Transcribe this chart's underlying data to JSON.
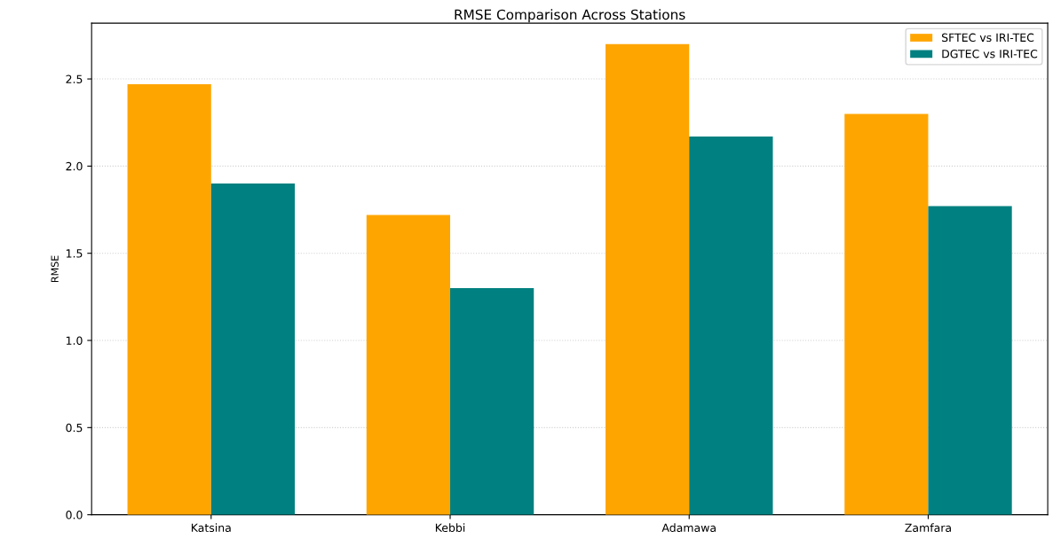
{
  "chart_data": {
    "type": "bar",
    "title": "RMSE Comparison Across Stations",
    "ylabel": "RMSE",
    "categories": [
      "Katsina",
      "Kebbi",
      "Adamawa",
      "Zamfara"
    ],
    "series": [
      {
        "name": "SFTEC vs IRI-TEC",
        "color": "#ffa500",
        "values": [
          2.47,
          1.72,
          2.7,
          2.3
        ]
      },
      {
        "name": "DGTEC vs IRI-TEC",
        "color": "#008080",
        "values": [
          1.9,
          1.3,
          2.17,
          1.77
        ]
      }
    ],
    "ylim": [
      0,
      2.82
    ],
    "yticks": [
      {
        "value": 0,
        "label": "0.0"
      },
      {
        "value": 0.5,
        "label": "0.5"
      },
      {
        "value": 1.0,
        "label": "1.0"
      },
      {
        "value": 1.5,
        "label": "1.5"
      },
      {
        "value": 2.0,
        "label": "2.0"
      },
      {
        "value": 2.5,
        "label": "2.5"
      }
    ],
    "grid": "y",
    "legend": "top right"
  }
}
